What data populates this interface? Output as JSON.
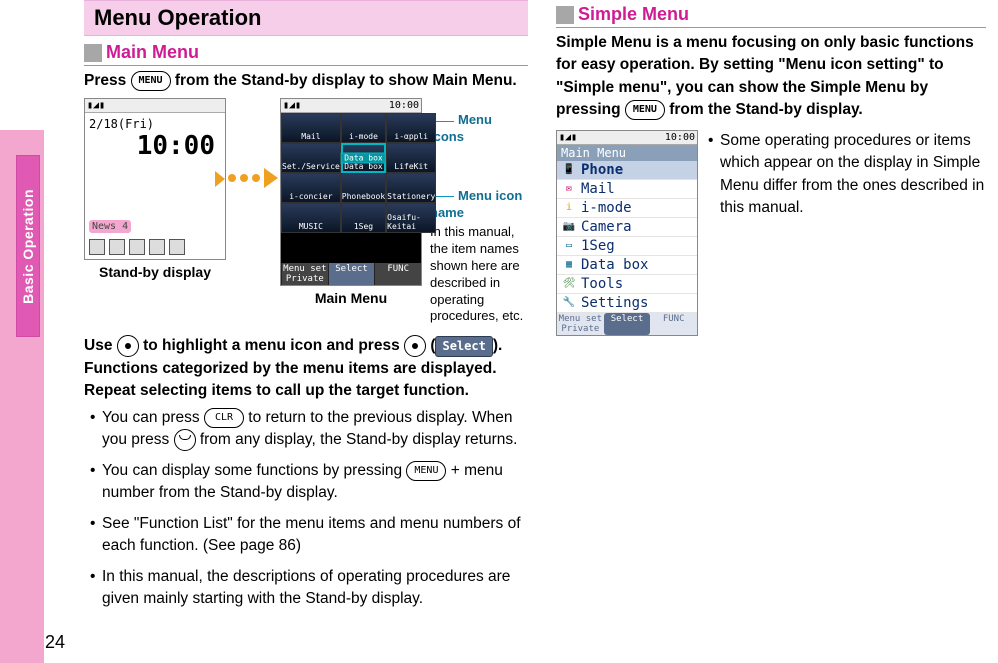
{
  "page_number": "24",
  "side_tab": "Basic Operation",
  "left": {
    "title": "Menu Operation",
    "section": "Main Menu",
    "intro_before": "Press ",
    "intro_btn1": "MENU",
    "intro_after": " from the Stand-by display to show Main Menu.",
    "standby": {
      "date": "2/18(Fri)",
      "clock": "10:00",
      "news": "News 4",
      "caption": "Stand-by display"
    },
    "mainmenu": {
      "status_time": "10:00",
      "cells": [
        "Mail",
        "i-mode",
        "i-αppli",
        "Set./Service",
        "Data box",
        "LifeKit",
        "i-concier",
        "Phonebook",
        "Stationery",
        "MUSIC",
        "1Seg",
        "Osaifu-Keitai"
      ],
      "selected_label": "Data box",
      "soft_left": "Menu set\nPrivate",
      "soft_mid": "Select",
      "soft_right": "FUNC",
      "caption": "Main Menu"
    },
    "callout_icons": "Menu icons",
    "callout_name_title": "Menu icon name",
    "callout_name_body": "In this manual, the item names shown here are described in operating procedures, etc.",
    "para2_a": "Use ",
    "para2_b": " to highlight a menu icon and press ",
    "para2_c": "(",
    "para2_chip": "Select",
    "para2_d": "). Functions categorized by the menu items are displayed. Repeat selecting items to call up the target function.",
    "bullets": [
      {
        "pre": "You can press ",
        "btn": "CLR",
        "mid": " to return to the previous display. When you press ",
        "end": " from any display, the Stand-by display returns."
      },
      {
        "pre": "You can display some functions by pressing ",
        "btn": "MENU",
        "mid": " + menu number from the Stand-by display.",
        "end": ""
      },
      {
        "pre": "See \"Function List\" for the menu items and menu numbers of each function. (See page 86)",
        "btn": "",
        "mid": "",
        "end": ""
      },
      {
        "pre": "In this manual, the descriptions of operating procedures are given mainly starting with the Stand-by display.",
        "btn": "",
        "mid": "",
        "end": ""
      }
    ]
  },
  "right": {
    "section": "Simple Menu",
    "intro_a": "Simple Menu is a menu focusing on only basic functions for easy operation. By setting \"Menu icon setting\" to \"Simple menu\", you can show the Simple Menu by pressing ",
    "intro_btn": "MENU",
    "intro_b": " from the Stand-by display.",
    "simple": {
      "status_time": "10:00",
      "title": "Main Menu",
      "items": [
        {
          "icon": "📱",
          "label": "Phone",
          "sel": true,
          "color": "#cc0066"
        },
        {
          "icon": "✉",
          "label": "Mail",
          "sel": false,
          "color": "#cc0066"
        },
        {
          "icon": "i",
          "label": "i-mode",
          "sel": false,
          "color": "#e0a000"
        },
        {
          "icon": "📷",
          "label": "Camera",
          "sel": false,
          "color": "#116e93"
        },
        {
          "icon": "▭",
          "label": "1Seg",
          "sel": false,
          "color": "#116e93"
        },
        {
          "icon": "▦",
          "label": "Data box",
          "sel": false,
          "color": "#116e93"
        },
        {
          "icon": "🛠",
          "label": "Tools",
          "sel": false,
          "color": "#2e7d32"
        },
        {
          "icon": "🔧",
          "label": "Settings",
          "sel": false,
          "color": "#2e7d32"
        }
      ],
      "soft_left": "Menu set\nPrivate",
      "soft_mid": "Select",
      "soft_right": "FUNC"
    },
    "note": "Some operating procedures or items which appear on the display in Simple Menu differ from the ones described in this manual."
  },
  "colors": {
    "tab_bg": "#e05ab3",
    "strip": "#f3a7ce",
    "title_bg": "#f6ceea",
    "heading": "#ce1d94",
    "callout": "#116e93"
  }
}
